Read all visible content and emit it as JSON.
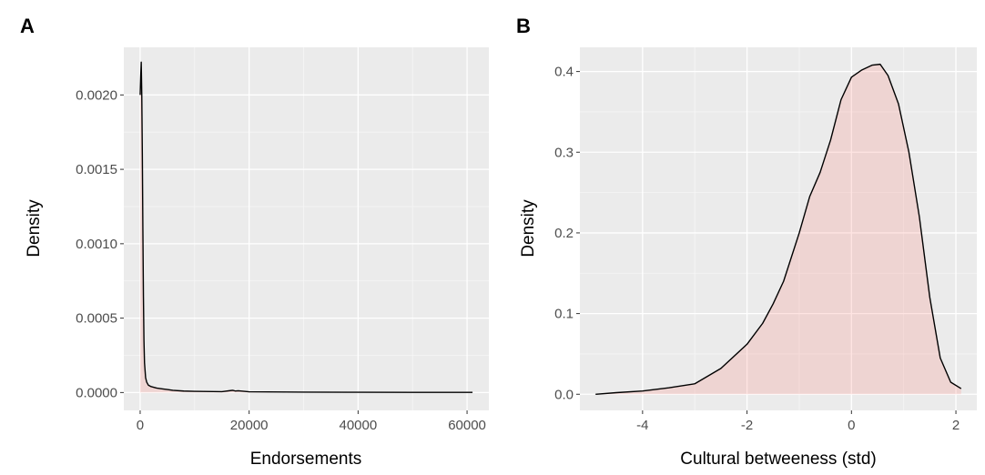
{
  "chart_data": [
    {
      "type": "area",
      "panel_tag": "A",
      "title": "",
      "xlabel": "Endorsements",
      "ylabel": "Density",
      "xlim": [
        -3000,
        64000
      ],
      "ylim": [
        -0.00012,
        0.00232
      ],
      "x_ticks": [
        0,
        20000,
        40000,
        60000
      ],
      "x_tick_labels": [
        "0",
        "20000",
        "40000",
        "60000"
      ],
      "y_ticks": [
        0,
        0.0005,
        0.001,
        0.0015,
        0.002
      ],
      "y_tick_labels": [
        "0.0000",
        "0.0005",
        "0.0010",
        "0.0015",
        "0.0020"
      ],
      "grid": true,
      "fill_color": "#f8766d",
      "series": [
        {
          "x": [
            0,
            100,
            200,
            300,
            400,
            500,
            600,
            700,
            800,
            1000,
            1200,
            1500,
            2000,
            3000,
            4000,
            5000,
            6000,
            8000,
            10000,
            15000,
            17000,
            17500,
            18000,
            20000,
            30000,
            40000,
            50000,
            61000
          ],
          "values": [
            0.002,
            0.00212,
            0.00222,
            0.002,
            0.0016,
            0.0011,
            0.00065,
            0.00035,
            0.0002,
            0.0001,
            7e-05,
            5e-05,
            4e-05,
            3e-05,
            2.5e-05,
            2e-05,
            1.5e-05,
            1e-05,
            8e-06,
            6e-06,
            1.5e-05,
            1e-05,
            1.2e-05,
            5e-06,
            3e-06,
            2e-06,
            1e-06,
            1e-06
          ]
        }
      ]
    },
    {
      "type": "area",
      "panel_tag": "B",
      "title": "",
      "xlabel": "Cultural betweeness (std)",
      "ylabel": "Density",
      "xlim": [
        -5.2,
        2.4
      ],
      "ylim": [
        -0.02,
        0.43
      ],
      "x_ticks": [
        -4,
        -2,
        0,
        2
      ],
      "x_tick_labels": [
        "-4",
        "-2",
        "0",
        "2"
      ],
      "y_ticks": [
        0,
        0.1,
        0.2,
        0.3,
        0.4
      ],
      "y_tick_labels": [
        "0.0",
        "0.1",
        "0.2",
        "0.3",
        "0.4"
      ],
      "grid": true,
      "fill_color": "#f8766d",
      "series": [
        {
          "x": [
            -4.9,
            -4.5,
            -4.0,
            -3.5,
            -3.0,
            -2.5,
            -2.0,
            -1.7,
            -1.5,
            -1.3,
            -1.0,
            -0.8,
            -0.6,
            -0.4,
            -0.2,
            0.0,
            0.2,
            0.4,
            0.55,
            0.7,
            0.9,
            1.1,
            1.3,
            1.5,
            1.7,
            1.9,
            2.1
          ],
          "values": [
            0.0,
            0.002,
            0.004,
            0.008,
            0.013,
            0.032,
            0.062,
            0.088,
            0.112,
            0.14,
            0.2,
            0.245,
            0.275,
            0.315,
            0.365,
            0.393,
            0.402,
            0.408,
            0.409,
            0.395,
            0.36,
            0.3,
            0.22,
            0.12,
            0.045,
            0.015,
            0.007
          ]
        }
      ]
    }
  ]
}
